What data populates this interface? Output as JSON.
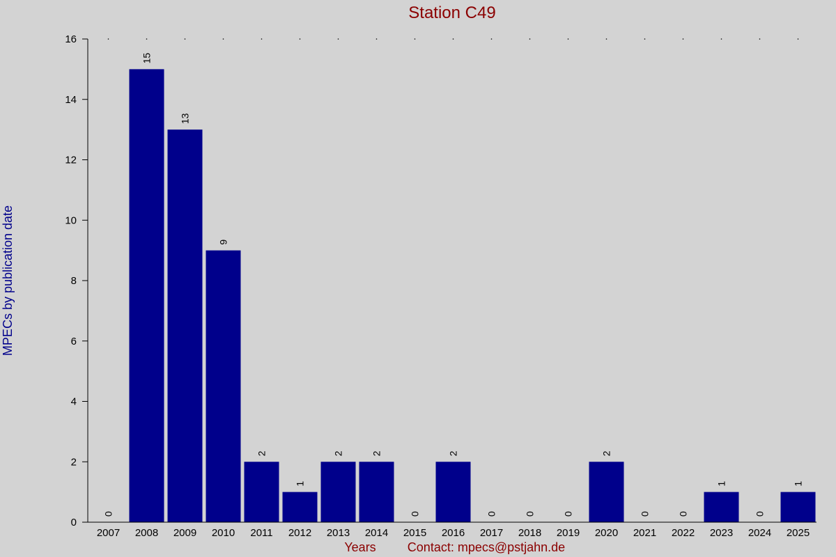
{
  "chart_data": {
    "type": "bar",
    "title": "Station C49",
    "xlabel": "Years",
    "ylabel": "MPECs by publication date",
    "footer": "Contact: mpecs@pstjahn.de",
    "categories": [
      "2007",
      "2008",
      "2009",
      "2010",
      "2011",
      "2012",
      "2013",
      "2014",
      "2015",
      "2016",
      "2017",
      "2018",
      "2019",
      "2020",
      "2021",
      "2022",
      "2023",
      "2024",
      "2025"
    ],
    "values": [
      0,
      15,
      13,
      9,
      2,
      1,
      2,
      2,
      0,
      2,
      0,
      0,
      0,
      2,
      0,
      0,
      1,
      0,
      1
    ],
    "ylim": [
      0,
      16
    ],
    "yticks": [
      0,
      2,
      4,
      6,
      8,
      10,
      12,
      14,
      16
    ],
    "grid": false,
    "colors": {
      "background": "#d3d3d3",
      "bar": "#00008b",
      "title": "#8b0000",
      "ylabel": "#00008b",
      "xlabel": "#8b0000",
      "footer": "#8b0000"
    }
  }
}
